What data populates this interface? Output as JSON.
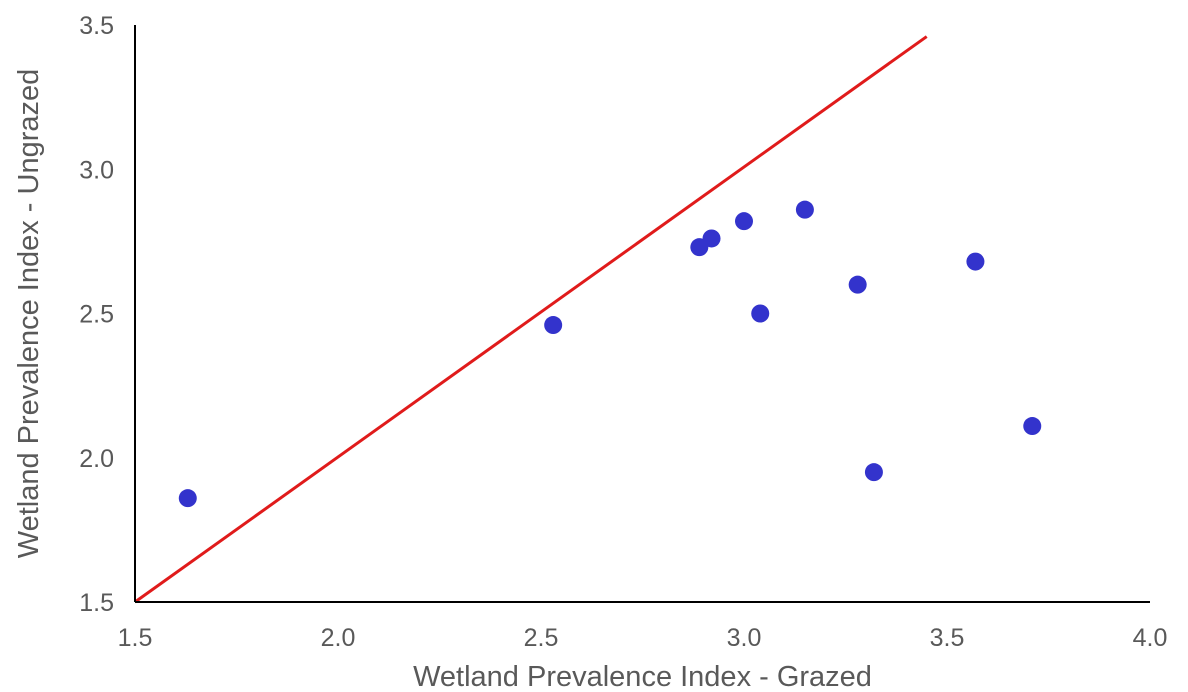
{
  "chart_data": {
    "type": "scatter",
    "xlabel": "Wetland Prevalence Index - Grazed",
    "ylabel": "Wetland Prevalence Index - Ungrazed",
    "xlim": [
      1.5,
      4.0
    ],
    "ylim": [
      1.5,
      3.5
    ],
    "x_ticks": [
      "1.5",
      "2.0",
      "2.5",
      "3.0",
      "3.5",
      "4.0"
    ],
    "y_ticks": [
      "1.5",
      "2.0",
      "2.5",
      "3.0",
      "3.5"
    ],
    "grid": false,
    "legend": "none",
    "series": [
      {
        "color": "#3333cc",
        "points": [
          [
            1.63,
            1.86
          ],
          [
            2.53,
            2.46
          ],
          [
            2.89,
            2.73
          ],
          [
            2.92,
            2.76
          ],
          [
            3.0,
            2.82
          ],
          [
            3.04,
            2.5
          ],
          [
            3.15,
            2.86
          ],
          [
            3.28,
            2.6
          ],
          [
            3.32,
            1.95
          ],
          [
            3.57,
            2.68
          ],
          [
            3.71,
            2.11
          ]
        ]
      }
    ],
    "reference_line": {
      "color": "#e01b1b",
      "from": [
        1.5,
        1.5
      ],
      "to": [
        3.45,
        3.46
      ]
    }
  }
}
